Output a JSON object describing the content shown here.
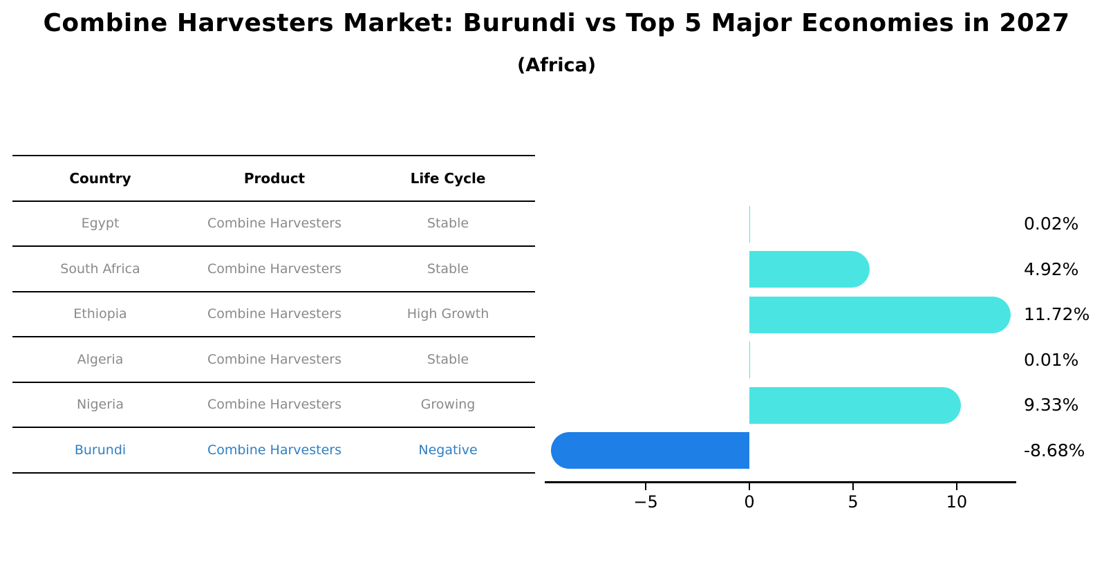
{
  "title": "Combine Harvesters Market: Burundi vs Top 5 Major Economies in 2027",
  "subtitle": "(Africa)",
  "table": {
    "headers": [
      "Country",
      "Product",
      "Life Cycle"
    ],
    "rows": [
      {
        "country": "Egypt",
        "product": "Combine Harvesters",
        "life_cycle": "Stable",
        "highlight": false
      },
      {
        "country": "South Africa",
        "product": "Combine Harvesters",
        "life_cycle": "Stable",
        "highlight": false
      },
      {
        "country": "Ethiopia",
        "product": "Combine Harvesters",
        "life_cycle": "High Growth",
        "highlight": false
      },
      {
        "country": "Algeria",
        "product": "Combine Harvesters",
        "life_cycle": "Stable",
        "highlight": false
      },
      {
        "country": "Nigeria",
        "product": "Combine Harvesters",
        "life_cycle": "Growing",
        "highlight": false
      },
      {
        "country": "Burundi",
        "product": "Combine Harvesters",
        "life_cycle": "Negative",
        "highlight": true
      }
    ]
  },
  "chart_data": {
    "type": "bar",
    "orientation": "horizontal",
    "title": "Combine Harvesters Market: Burundi vs Top 5 Major Economies in 2027 (Africa)",
    "categories": [
      "Egypt",
      "South Africa",
      "Ethiopia",
      "Algeria",
      "Nigeria",
      "Burundi"
    ],
    "values": [
      0.02,
      4.92,
      11.72,
      0.01,
      9.33,
      -8.68
    ],
    "value_labels": [
      "0.02%",
      "4.92%",
      "11.72%",
      "0.01%",
      "9.33%",
      "-8.68%"
    ],
    "x_ticks": [
      -5,
      0,
      5,
      10
    ],
    "x_tick_labels": [
      "−5",
      "0",
      "5",
      "10"
    ],
    "xlim": [
      -9.87,
      12.87
    ],
    "grid": false,
    "legend": false,
    "highlight_category": "Burundi",
    "highlight_style": "dotted-outline",
    "colors": {
      "positive_bar": "#4AE5E2",
      "negative_bar": "#1E7FE6",
      "highlight_text": "#2E7FC4",
      "table_text": "#8a8a8a",
      "axis": "#000000"
    }
  }
}
